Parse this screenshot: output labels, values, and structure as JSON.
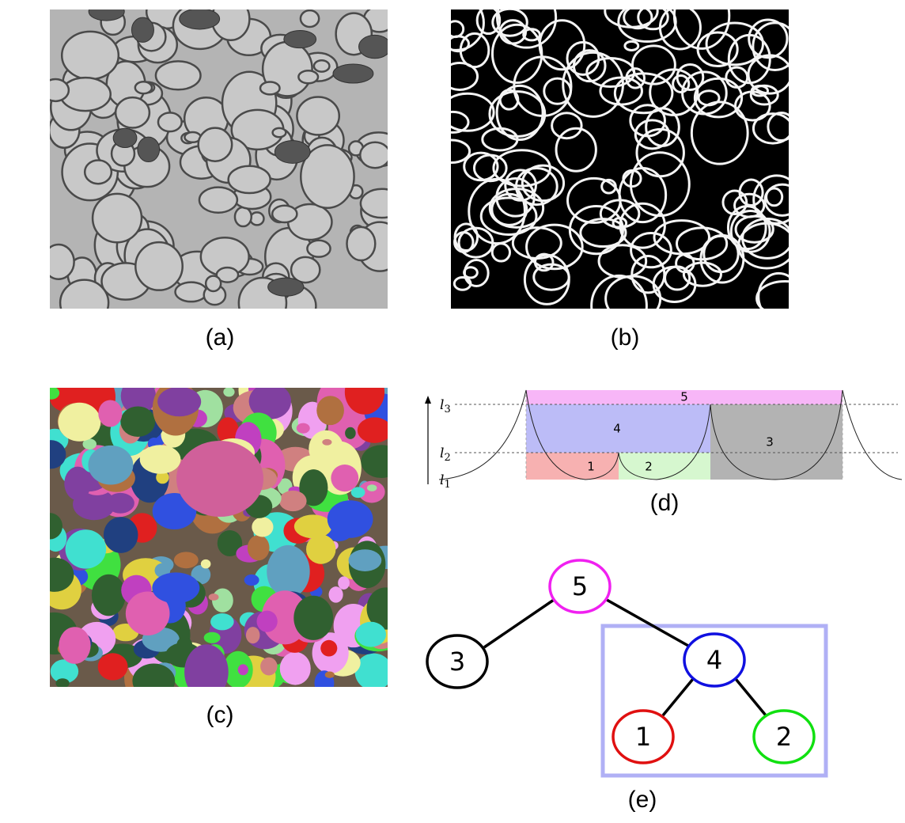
{
  "panels": [
    {
      "caption": "(a)"
    },
    {
      "caption": "(b)"
    },
    {
      "caption": "(c)"
    },
    {
      "caption": "(d)"
    },
    {
      "caption": "(e)"
    }
  ],
  "diagram_d": {
    "levels": [
      {
        "symbol": "l",
        "index": "1"
      },
      {
        "symbol": "l",
        "index": "2"
      },
      {
        "symbol": "l",
        "index": "3"
      }
    ],
    "regions": [
      "1",
      "2",
      "3",
      "4",
      "5"
    ]
  },
  "tree_e": {
    "nodes": [
      {
        "label": "5"
      },
      {
        "label": "3"
      },
      {
        "label": "4"
      },
      {
        "label": "1"
      },
      {
        "label": "2"
      }
    ]
  }
}
